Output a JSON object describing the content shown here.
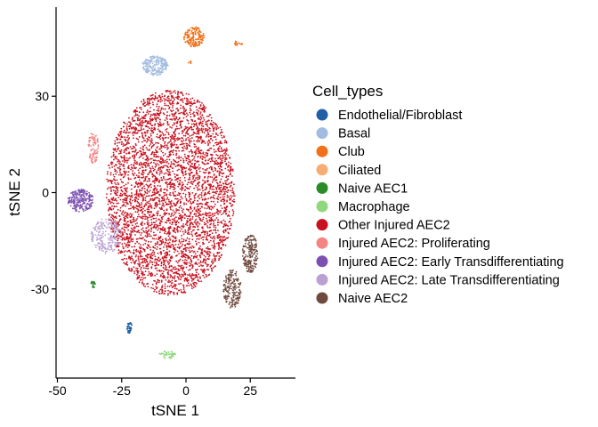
{
  "chart_data": {
    "type": "scatter",
    "xlabel": "tSNE 1",
    "ylabel": "tSNE 2",
    "xlim": [
      -50,
      42
    ],
    "ylim": [
      -57,
      53
    ],
    "xticks": [
      -50,
      -25,
      0,
      25
    ],
    "yticks": [
      -30,
      0,
      30
    ],
    "grid": false,
    "legend_title": "Cell_types",
    "legend_position": "right",
    "series": [
      {
        "name": "Endothelial/Fibroblast",
        "color": "#1f5fa6",
        "clusters": [
          {
            "cx": -22,
            "cy": -42,
            "rx": 1.0,
            "ry": 1.8,
            "n": 40
          }
        ]
      },
      {
        "name": "Basal",
        "color": "#a2bbe0",
        "clusters": [
          {
            "cx": -12,
            "cy": 39.5,
            "rx": 5.0,
            "ry": 3.0,
            "n": 220
          }
        ]
      },
      {
        "name": "Club",
        "color": "#f07118",
        "clusters": [
          {
            "cx": 3,
            "cy": 48.5,
            "rx": 4.0,
            "ry": 3.2,
            "n": 170
          },
          {
            "cx": 20,
            "cy": 46.5,
            "rx": 2.0,
            "ry": 0.8,
            "n": 14
          },
          {
            "cx": 1.5,
            "cy": 40.5,
            "rx": 0.6,
            "ry": 0.6,
            "n": 5
          }
        ]
      },
      {
        "name": "Ciliated",
        "color": "#f7ac73",
        "clusters": []
      },
      {
        "name": "Naive AEC1",
        "color": "#2a8c27",
        "clusters": [
          {
            "cx": -36,
            "cy": -28.5,
            "rx": 0.9,
            "ry": 1.1,
            "n": 22
          }
        ]
      },
      {
        "name": "Macrophage",
        "color": "#8fd87f",
        "clusters": [
          {
            "cx": -7,
            "cy": -50.5,
            "rx": 3.5,
            "ry": 1.2,
            "n": 45
          }
        ]
      },
      {
        "name": "Other Injured AEC2",
        "color": "#c8101e",
        "clusters": [
          {
            "cx": -6,
            "cy": 0,
            "rx": 25,
            "ry": 32,
            "n": 4200
          }
        ]
      },
      {
        "name": "Injured AEC2: Proliferating",
        "color": "#f48583",
        "clusters": [
          {
            "cx": -36,
            "cy": 14,
            "rx": 2.0,
            "ry": 5.0,
            "n": 90
          }
        ]
      },
      {
        "name": "Injured AEC2: Early Transdifferentiating",
        "color": "#7c4fb2",
        "clusters": [
          {
            "cx": -41,
            "cy": -2.5,
            "rx": 5.0,
            "ry": 3.5,
            "n": 220
          }
        ]
      },
      {
        "name": "Injured AEC2: Late Transdifferentiating",
        "color": "#b9a2d3",
        "clusters": [
          {
            "cx": -31,
            "cy": -13.5,
            "rx": 6.0,
            "ry": 5.5,
            "n": 220
          }
        ]
      },
      {
        "name": "Naive AEC2",
        "color": "#704a3f",
        "clusters": [
          {
            "cx": 25,
            "cy": -19,
            "rx": 3.0,
            "ry": 6.0,
            "n": 190
          },
          {
            "cx": 18,
            "cy": -30,
            "rx": 3.5,
            "ry": 6.0,
            "n": 190
          }
        ]
      }
    ]
  }
}
